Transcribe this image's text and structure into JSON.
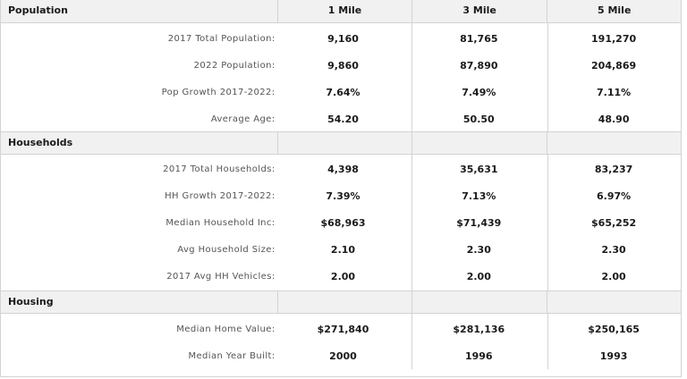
{
  "columns": [
    "1 Mile",
    "3 Mile",
    "5 Mile"
  ],
  "sections": [
    {
      "title": "Population",
      "rows": [
        {
          "label": "2017 Total Population:",
          "values": [
            "9,160",
            "81,765",
            "191,270"
          ]
        },
        {
          "label": "2022 Population:",
          "values": [
            "9,860",
            "87,890",
            "204,869"
          ]
        },
        {
          "label": "Pop Growth 2017-2022:",
          "values": [
            "7.64%",
            "7.49%",
            "7.11%"
          ]
        },
        {
          "label": "Average Age:",
          "values": [
            "54.20",
            "50.50",
            "48.90"
          ]
        }
      ]
    },
    {
      "title": "Households",
      "rows": [
        {
          "label": "2017 Total Households:",
          "values": [
            "4,398",
            "35,631",
            "83,237"
          ]
        },
        {
          "label": "HH Growth 2017-2022:",
          "values": [
            "7.39%",
            "7.13%",
            "6.97%"
          ]
        },
        {
          "label": "Median Household Inc:",
          "values": [
            "$68,963",
            "$71,439",
            "$65,252"
          ]
        },
        {
          "label": "Avg Household Size:",
          "values": [
            "2.10",
            "2.30",
            "2.30"
          ]
        },
        {
          "label": "2017 Avg HH Vehicles:",
          "values": [
            "2.00",
            "2.00",
            "2.00"
          ]
        }
      ]
    },
    {
      "title": "Housing",
      "rows": [
        {
          "label": "Median Home Value:",
          "values": [
            "$271,840",
            "$281,136",
            "$250,165"
          ]
        },
        {
          "label": "Median Year Built:",
          "values": [
            "2000",
            "1996",
            "1993"
          ]
        }
      ]
    }
  ]
}
